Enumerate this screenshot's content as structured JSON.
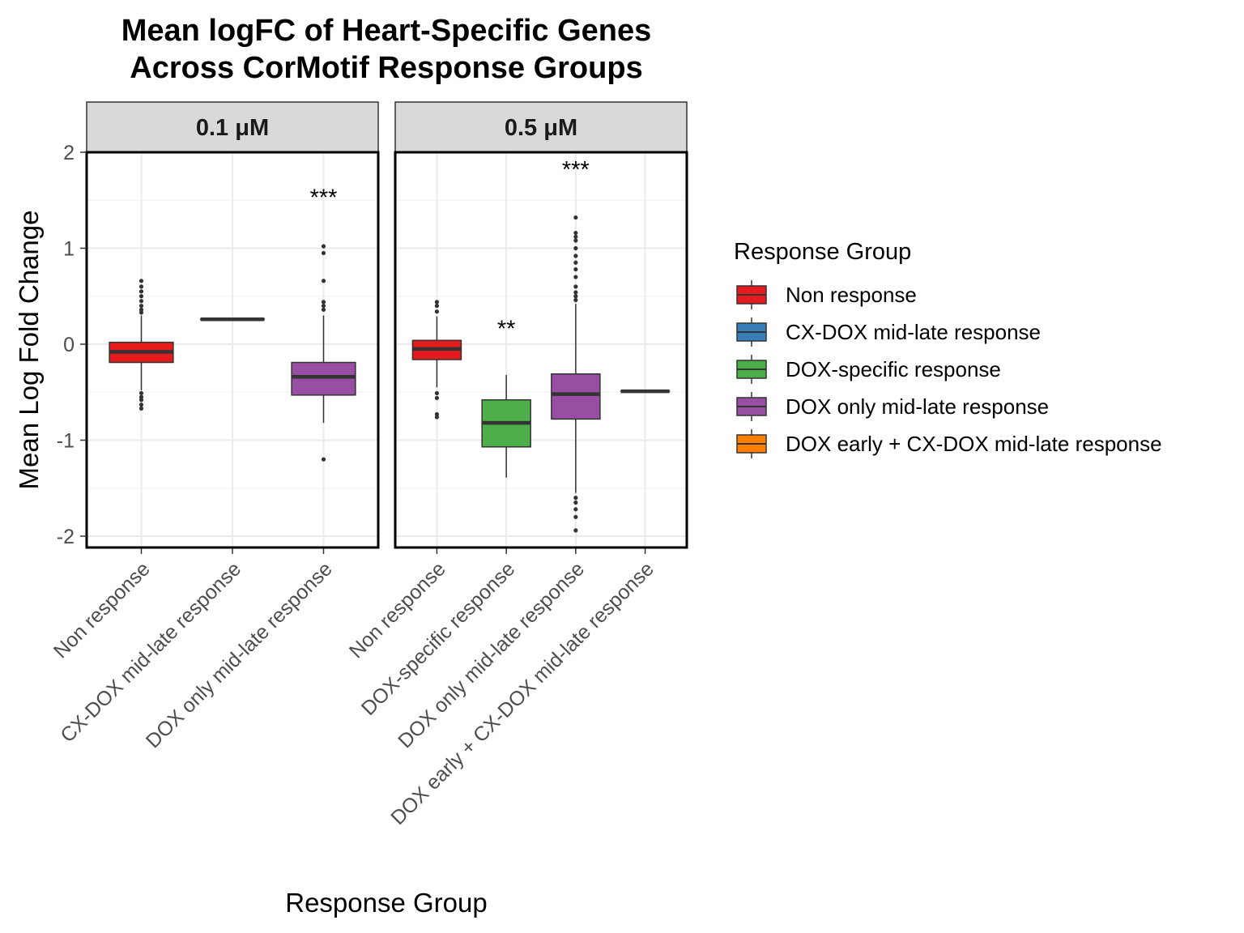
{
  "chart_data": {
    "type": "boxplot",
    "title": "Mean logFC of Heart-Specific Genes\nAcross CorMotif Response Groups",
    "title_lines": [
      "Mean logFC of Heart-Specific Genes",
      "Across CorMotif Response Groups"
    ],
    "xlabel": "Response Group",
    "ylabel": "Mean Log Fold Change",
    "ylim": [
      -2.12,
      2.0
    ],
    "y_ticks": [
      -2,
      -1,
      0,
      1,
      2
    ],
    "y_tick_labels": [
      "-2",
      "-1",
      "0",
      "1",
      "2"
    ],
    "grid": true,
    "legend": {
      "title": "Response Group",
      "placement": "right",
      "items": [
        {
          "label": "Non response",
          "color": "#E41A1C"
        },
        {
          "label": "CX-DOX mid-late response",
          "color": "#377EB8"
        },
        {
          "label": "DOX-specific response",
          "color": "#4DAF4A"
        },
        {
          "label": "DOX only mid-late response",
          "color": "#984EA3"
        },
        {
          "label": "DOX early + CX-DOX mid-late response",
          "color": "#FF7F00"
        }
      ]
    },
    "facets": [
      {
        "label": "0.1 μM",
        "groups": [
          {
            "name": "Non response",
            "color": "#E41A1C",
            "q1": -0.19,
            "median": -0.08,
            "q3": 0.02,
            "whisker_low": -0.48,
            "whisker_high": 0.3,
            "outliers": [
              0.33,
              0.36,
              0.4,
              0.45,
              0.5,
              0.55,
              0.6,
              0.66,
              -0.51,
              -0.55,
              -0.58,
              -0.63,
              -0.67
            ]
          },
          {
            "name": "CX-DOX mid-late response",
            "color": "#377EB8",
            "q1": 0.26,
            "median": 0.26,
            "q3": 0.26,
            "whisker_low": 0.26,
            "whisker_high": 0.26,
            "outliers": []
          },
          {
            "name": "DOX only mid-late response",
            "color": "#984EA3",
            "q1": -0.53,
            "median": -0.34,
            "q3": -0.19,
            "whisker_low": -0.82,
            "whisker_high": 0.3,
            "outliers": [
              0.36,
              0.4,
              0.44,
              0.66,
              0.95,
              1.02,
              -1.2
            ],
            "significance": "***",
            "sig_y": 1.55
          }
        ]
      },
      {
        "label": "0.5 μM",
        "groups": [
          {
            "name": "Non response",
            "color": "#E41A1C",
            "q1": -0.16,
            "median": -0.05,
            "q3": 0.04,
            "whisker_low": -0.45,
            "whisker_high": 0.29,
            "outliers": [
              0.34,
              0.4,
              0.44,
              -0.51,
              -0.56,
              -0.73,
              -0.76
            ]
          },
          {
            "name": "DOX-specific response",
            "color": "#4DAF4A",
            "q1": -1.07,
            "median": -0.82,
            "q3": -0.58,
            "whisker_low": -1.39,
            "whisker_high": -0.32,
            "outliers": [],
            "significance": "**",
            "sig_y": 0.18
          },
          {
            "name": "DOX only mid-late response",
            "color": "#984EA3",
            "q1": -0.78,
            "median": -0.52,
            "q3": -0.31,
            "whisker_low": -1.55,
            "whisker_high": 0.42,
            "outliers": [
              0.46,
              0.5,
              0.54,
              0.6,
              0.7,
              0.78,
              0.85,
              0.92,
              1.0,
              1.08,
              1.12,
              1.16,
              1.32,
              -1.6,
              -1.65,
              -1.72,
              -1.8,
              -1.94
            ],
            "significance": "***",
            "sig_y": 1.84
          },
          {
            "name": "DOX early + CX-DOX mid-late response",
            "color": "#FF7F00",
            "q1": -0.49,
            "median": -0.49,
            "q3": -0.49,
            "whisker_low": -0.49,
            "whisker_high": -0.49,
            "outliers": []
          }
        ]
      }
    ]
  }
}
